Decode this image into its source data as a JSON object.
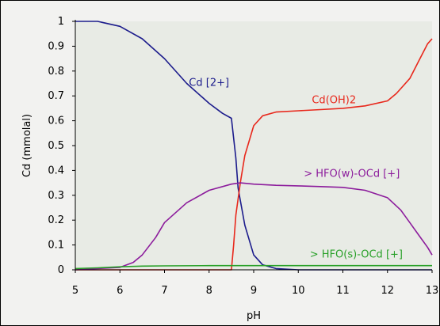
{
  "chart_data": {
    "type": "line",
    "title": "",
    "xlabel": "pH",
    "ylabel": "Cd (mmolal)",
    "xlim": [
      5,
      13
    ],
    "ylim": [
      0,
      1
    ],
    "x_ticks": [
      5,
      6,
      7,
      8,
      9,
      10,
      11,
      12,
      13
    ],
    "y_ticks": [
      0,
      0.1,
      0.2,
      0.3,
      0.4,
      0.5,
      0.6,
      0.7,
      0.8,
      0.9,
      1
    ],
    "x_tick_labels": [
      "5",
      "6",
      "7",
      "8",
      "9",
      "10",
      "11",
      "12",
      "13"
    ],
    "y_tick_labels": [
      "0",
      "0.1",
      "0.2",
      "0.3",
      "0.4",
      "0.5",
      "0.6",
      "0.7",
      "0.8",
      "0.9",
      "1"
    ],
    "grid": false,
    "legend": "none (series labeled inline)",
    "plot_background": "#e8ebe5",
    "series": [
      {
        "name": "Cd [2+]",
        "color": "#1c1c8c",
        "x": [
          5.0,
          5.5,
          6.0,
          6.5,
          7.0,
          7.5,
          8.0,
          8.3,
          8.5,
          8.6,
          8.65,
          8.7,
          8.8,
          9.0,
          9.2,
          9.5,
          10.0,
          10.5,
          11.0,
          12.0,
          13.0
        ],
        "y": [
          1.0,
          1.0,
          0.98,
          0.93,
          0.85,
          0.75,
          0.67,
          0.63,
          0.61,
          0.45,
          0.33,
          0.28,
          0.18,
          0.06,
          0.02,
          0.005,
          0.0,
          0.0,
          0.0,
          0.0,
          0.0
        ]
      },
      {
        "name": "Cd(OH)2",
        "color": "#e8281c",
        "x": [
          5.0,
          8.5,
          8.55,
          8.6,
          8.7,
          8.8,
          9.0,
          9.2,
          9.5,
          10.0,
          10.5,
          11.0,
          11.5,
          12.0,
          12.2,
          12.5,
          12.7,
          12.9,
          13.0
        ],
        "y": [
          0.0,
          0.0,
          0.1,
          0.22,
          0.35,
          0.46,
          0.58,
          0.62,
          0.635,
          0.64,
          0.645,
          0.65,
          0.66,
          0.68,
          0.71,
          0.77,
          0.84,
          0.91,
          0.93
        ]
      },
      {
        "name": "> HFO(w)-OCd [+]",
        "color": "#8c1c9c",
        "x": [
          5.0,
          5.5,
          6.0,
          6.3,
          6.5,
          6.8,
          7.0,
          7.5,
          8.0,
          8.5,
          8.7,
          9.0,
          9.5,
          10.0,
          10.5,
          11.0,
          11.5,
          12.0,
          12.3,
          12.5,
          12.7,
          12.9,
          13.0
        ],
        "y": [
          0.0,
          0.005,
          0.01,
          0.03,
          0.06,
          0.13,
          0.19,
          0.27,
          0.32,
          0.345,
          0.35,
          0.345,
          0.34,
          0.338,
          0.335,
          0.332,
          0.32,
          0.29,
          0.24,
          0.19,
          0.14,
          0.09,
          0.06
        ]
      },
      {
        "name": "> HFO(s)-OCd [+]",
        "color": "#28a028",
        "x": [
          5.0,
          5.5,
          6.0,
          6.5,
          7.0,
          8.0,
          9.0,
          10.0,
          11.0,
          12.0,
          13.0
        ],
        "y": [
          0.005,
          0.008,
          0.012,
          0.015,
          0.016,
          0.017,
          0.017,
          0.017,
          0.017,
          0.017,
          0.017
        ]
      }
    ]
  }
}
